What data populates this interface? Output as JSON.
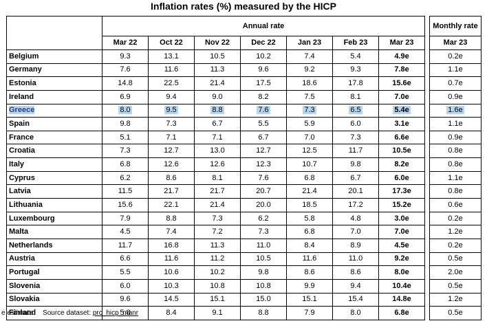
{
  "title": "Inflation rates (%) measured by the HICP",
  "annual_header": "Annual rate",
  "monthly_header": "Monthly rate",
  "annual_columns": [
    "Mar 22",
    "Oct 22",
    "Nov 22",
    "Dec 22",
    "Jan 23",
    "Feb 23",
    "Mar 23"
  ],
  "monthly_column": "Mar 23",
  "selected_country": "Greece",
  "rows": [
    {
      "country": "Belgium",
      "values": [
        "9.3",
        "13.1",
        "10.5",
        "10.2",
        "7.4",
        "5.4",
        "4.9e"
      ],
      "monthly": "0.2e"
    },
    {
      "country": "Germany",
      "values": [
        "7.6",
        "11.6",
        "11.3",
        "9.6",
        "9.2",
        "9.3",
        "7.8e"
      ],
      "monthly": "1.1e"
    },
    {
      "country": "Estonia",
      "values": [
        "14.8",
        "22.5",
        "21.4",
        "17.5",
        "18.6",
        "17.8",
        "15.6e"
      ],
      "monthly": "0.7e"
    },
    {
      "country": "Ireland",
      "values": [
        "6.9",
        "9.4",
        "9.0",
        "8.2",
        "7.5",
        "8.1",
        "7.0e"
      ],
      "monthly": "0.9e"
    },
    {
      "country": "Greece",
      "values": [
        "8.0",
        "9.5",
        "8.8",
        "7.6",
        "7.3",
        "6.5",
        "5.4e"
      ],
      "monthly": "1.6e"
    },
    {
      "country": "Spain",
      "values": [
        "9.8",
        "7.3",
        "6.7",
        "5.5",
        "5.9",
        "6.0",
        "3.1e"
      ],
      "monthly": "1.1e"
    },
    {
      "country": "France",
      "values": [
        "5.1",
        "7.1",
        "7.1",
        "6.7",
        "7.0",
        "7.3",
        "6.6e"
      ],
      "monthly": "0.9e"
    },
    {
      "country": "Croatia",
      "values": [
        "7.3",
        "12.7",
        "13.0",
        "12.7",
        "12.5",
        "11.7",
        "10.5e"
      ],
      "monthly": "0.8e"
    },
    {
      "country": "Italy",
      "values": [
        "6.8",
        "12.6",
        "12.6",
        "12.3",
        "10.7",
        "9.8",
        "8.2e"
      ],
      "monthly": "0.8e"
    },
    {
      "country": "Cyprus",
      "values": [
        "6.2",
        "8.6",
        "8.1",
        "7.6",
        "6.8",
        "6.7",
        "6.0e"
      ],
      "monthly": "1.1e"
    },
    {
      "country": "Latvia",
      "values": [
        "11.5",
        "21.7",
        "21.7",
        "20.7",
        "21.4",
        "20.1",
        "17.3e"
      ],
      "monthly": "0.8e"
    },
    {
      "country": "Lithuania",
      "values": [
        "15.6",
        "22.1",
        "21.4",
        "20.0",
        "18.5",
        "17.2",
        "15.2e"
      ],
      "monthly": "0.6e"
    },
    {
      "country": "Luxembourg",
      "values": [
        "7.9",
        "8.8",
        "7.3",
        "6.2",
        "5.8",
        "4.8",
        "3.0e"
      ],
      "monthly": "0.2e"
    },
    {
      "country": "Malta",
      "values": [
        "4.5",
        "7.4",
        "7.2",
        "7.3",
        "6.8",
        "7.0",
        "7.0e"
      ],
      "monthly": "1.2e"
    },
    {
      "country": "Netherlands",
      "values": [
        "11.7",
        "16.8",
        "11.3",
        "11.0",
        "8.4",
        "8.9",
        "4.5e"
      ],
      "monthly": "0.2e"
    },
    {
      "country": "Austria",
      "values": [
        "6.6",
        "11.6",
        "11.2",
        "10.5",
        "11.6",
        "11.0",
        "9.2e"
      ],
      "monthly": "0.5e"
    },
    {
      "country": "Portugal",
      "values": [
        "5.5",
        "10.6",
        "10.2",
        "9.8",
        "8.6",
        "8.6",
        "8.0e"
      ],
      "monthly": "2.0e"
    },
    {
      "country": "Slovenia",
      "values": [
        "6.0",
        "10.3",
        "10.8",
        "10.8",
        "9.9",
        "9.4",
        "10.4e"
      ],
      "monthly": "0.5e"
    },
    {
      "country": "Slovakia",
      "values": [
        "9.6",
        "14.5",
        "15.1",
        "15.0",
        "15.1",
        "15.4",
        "14.8e"
      ],
      "monthly": "1.2e"
    },
    {
      "country": "Finland",
      "values": [
        "5.8",
        "8.4",
        "9.1",
        "8.8",
        "7.9",
        "8.0",
        "6.8e"
      ],
      "monthly": "0.5e"
    }
  ],
  "footer": {
    "note": "e estimate",
    "source_label": "Source dataset:",
    "source_link": "prc_hicp_manr"
  },
  "colors": {
    "highlight": "#b7d5ee",
    "selected_text": "#2a3f8a"
  }
}
